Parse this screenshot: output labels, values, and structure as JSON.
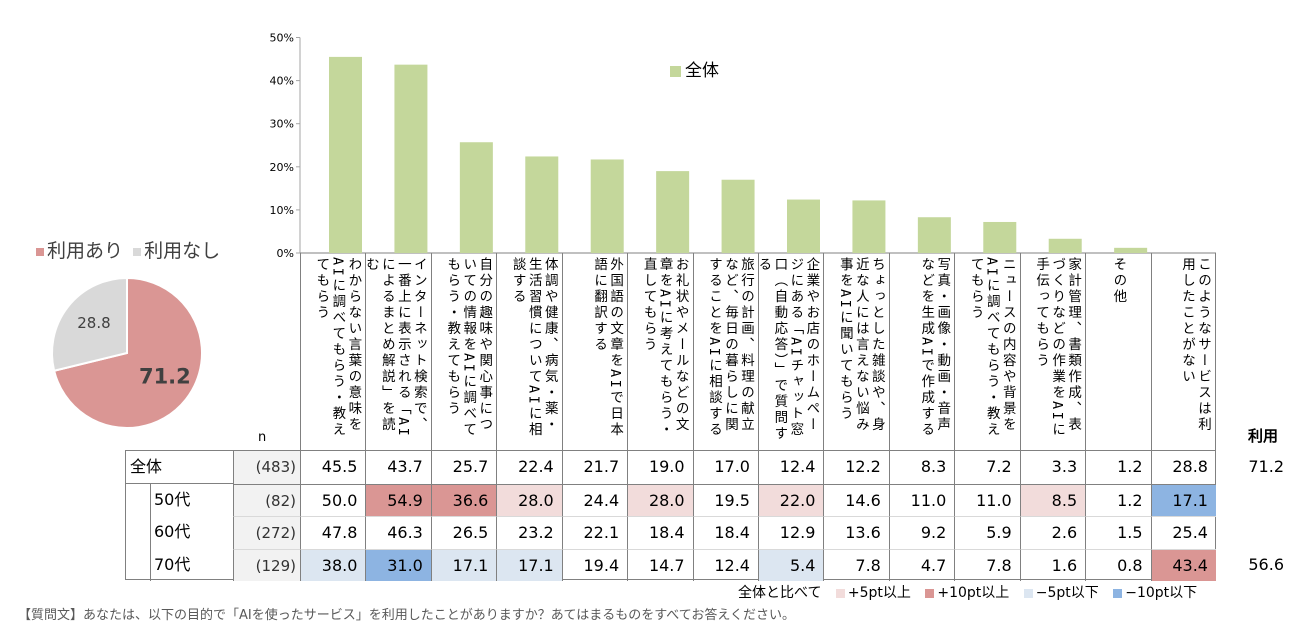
{
  "pie": {
    "legend": [
      {
        "label": "利用あり",
        "color": "#da9694"
      },
      {
        "label": "利用なし",
        "color": "#d9d9d9"
      }
    ],
    "slices": [
      {
        "label": "利用あり",
        "value": 71.2,
        "display": "71.2",
        "color": "#da9694"
      },
      {
        "label": "利用なし",
        "value": 28.8,
        "display": "28.8",
        "color": "#d9d9d9"
      }
    ]
  },
  "chart_data": [
    {
      "type": "pie",
      "categories": [
        "利用あり",
        "利用なし"
      ],
      "values": [
        71.2,
        28.8
      ]
    },
    {
      "type": "bar",
      "title": "",
      "legend": "全体",
      "legend_placement": "top-right",
      "ylim": [
        0,
        50
      ],
      "yticks": [
        "0%",
        "10%",
        "20%",
        "30%",
        "40%",
        "50%"
      ],
      "ytick_values": [
        0,
        10,
        20,
        30,
        40,
        50
      ],
      "color": "#c4d79b",
      "values": [
        45.5,
        43.7,
        25.7,
        22.4,
        21.7,
        19.0,
        17.0,
        12.4,
        12.2,
        8.3,
        7.2,
        3.3,
        1.2
      ]
    }
  ],
  "categories": [
    "わからない言葉の意味をAIに調べてもらう・教えてもらう",
    "インターネット検索で、一番上に表示される「AIによるまとめ解説」を読む",
    "自分の趣味や関心事についての情報をAIに調べてもらう・教えてもらう",
    "体調や健康、病気・薬・生活習慣についてAIに相談する",
    "外国語の文章をAIで日本語に翻訳する",
    "お礼状やメールなどの文章をAIに考えてもらう・直してもらう",
    "旅行の計画、料理の献立など、毎日の暮らしに関することをAIに相談する",
    "企業やお店のホームページにある「AIチャット窓口（自動応答）」で質問する",
    "ちょっとした雑談や、身近な人には言えない悩み事をAIに聞いてもらう",
    "写真・画像・動画・音声などを生成AIで作成する",
    "ニュースの内容や背景をAIに調べてもらう・教えてもらう",
    "家計管理、書類作成、表づくりなどの作業をAIに手伝ってもらう",
    "その他",
    "このようなサービスは利用したことがない"
  ],
  "table": {
    "n_header": "n",
    "use_header": "利用",
    "rows": [
      {
        "label": "全体",
        "n": "(483)",
        "values": [
          "45.5",
          "43.7",
          "25.7",
          "22.4",
          "21.7",
          "19.0",
          "17.0",
          "12.4",
          "12.2",
          "8.3",
          "7.2",
          "3.3",
          "1.2",
          "28.8"
        ],
        "hl": [
          0,
          0,
          0,
          0,
          0,
          0,
          0,
          0,
          0,
          0,
          0,
          0,
          0,
          0
        ],
        "use": "71.2"
      },
      {
        "label": "50代",
        "n": "(82)",
        "values": [
          "50.0",
          "54.9",
          "36.6",
          "28.0",
          "24.4",
          "28.0",
          "19.5",
          "22.0",
          "14.6",
          "11.0",
          "11.0",
          "8.5",
          "1.2",
          "17.1"
        ],
        "hl": [
          0,
          2,
          2,
          1,
          0,
          1,
          0,
          1,
          0,
          0,
          0,
          1,
          0,
          -2
        ],
        "use": ""
      },
      {
        "label": "60代",
        "n": "(272)",
        "values": [
          "47.8",
          "46.3",
          "26.5",
          "23.2",
          "22.1",
          "18.4",
          "18.4",
          "12.9",
          "13.6",
          "9.2",
          "5.9",
          "2.6",
          "1.5",
          "25.4"
        ],
        "hl": [
          0,
          0,
          0,
          0,
          0,
          0,
          0,
          0,
          0,
          0,
          0,
          0,
          0,
          0
        ],
        "use": ""
      },
      {
        "label": "70代",
        "n": "(129)",
        "values": [
          "38.0",
          "31.0",
          "17.1",
          "17.1",
          "19.4",
          "14.7",
          "12.4",
          "5.4",
          "7.8",
          "4.7",
          "7.8",
          "1.6",
          "0.8",
          "43.4"
        ],
        "hl": [
          -1,
          -2,
          -1,
          -1,
          0,
          0,
          0,
          -1,
          0,
          0,
          0,
          0,
          0,
          2
        ],
        "use": "56.6"
      }
    ]
  },
  "highlight_legend": {
    "intro": "全体と比べて",
    "items": [
      {
        "label": "+5pt以上",
        "color": "#f2dcdb"
      },
      {
        "label": "+10pt以上",
        "color": "#da9694"
      },
      {
        "label": "−5pt以下",
        "color": "#dce6f1"
      },
      {
        "label": "−10pt以下",
        "color": "#8db4e2"
      }
    ]
  },
  "highlight_colors": {
    "p5": "#f2dcdb",
    "p10": "#da9694",
    "m5": "#dce6f1",
    "m10": "#8db4e2"
  },
  "question": "【質問文】あなたは、以下の目的で「AIを使ったサービス」を利用したことがありますか？あてはまるものをすべてお答えください。"
}
